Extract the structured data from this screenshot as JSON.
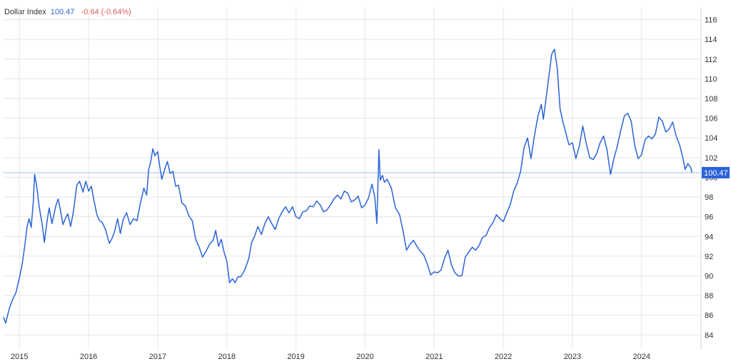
{
  "header": {
    "name": "Dollar Index",
    "last": "100.47",
    "change": "-0.64 (-0.64%)"
  },
  "colors": {
    "line": "#2b63d8",
    "last_value": "#2b63d8",
    "change_negative": "#e05a5a",
    "grid": "#e6e6e6",
    "ref_line": "#9cc3f0",
    "badge": "#2b63d8"
  },
  "chart_data": {
    "type": "line",
    "title": "Dollar Index",
    "xlabel": "",
    "ylabel": "",
    "x_ticks": [
      "2015",
      "2016",
      "2017",
      "2018",
      "2019",
      "2020",
      "2021",
      "2022",
      "2023",
      "2024"
    ],
    "y_ticks": [
      84,
      86,
      88,
      90,
      92,
      94,
      96,
      98,
      100,
      102,
      104,
      106,
      108,
      110,
      112,
      114,
      116
    ],
    "xlim": [
      2014.76,
      2024.86
    ],
    "ylim": [
      82.5,
      117.2
    ],
    "grid": true,
    "y_axis_side": "right",
    "last_value": 100.47,
    "last_label": "100.47",
    "series": [
      {
        "values": [
          [
            2014.77,
            85.8
          ],
          [
            2014.8,
            85.2
          ],
          [
            2014.85,
            86.6
          ],
          [
            2014.9,
            87.6
          ],
          [
            2014.95,
            88.3
          ],
          [
            2015.0,
            89.8
          ],
          [
            2015.04,
            91.2
          ],
          [
            2015.08,
            93.2
          ],
          [
            2015.11,
            95.0
          ],
          [
            2015.14,
            95.8
          ],
          [
            2015.17,
            94.9
          ],
          [
            2015.2,
            97.5
          ],
          [
            2015.22,
            100.3
          ],
          [
            2015.25,
            99.1
          ],
          [
            2015.28,
            97.3
          ],
          [
            2015.3,
            96.4
          ],
          [
            2015.33,
            95.2
          ],
          [
            2015.36,
            93.4
          ],
          [
            2015.4,
            95.6
          ],
          [
            2015.43,
            96.9
          ],
          [
            2015.47,
            95.3
          ],
          [
            2015.5,
            96.3
          ],
          [
            2015.53,
            97.2
          ],
          [
            2015.56,
            97.8
          ],
          [
            2015.6,
            96.4
          ],
          [
            2015.63,
            95.2
          ],
          [
            2015.67,
            95.9
          ],
          [
            2015.7,
            96.3
          ],
          [
            2015.74,
            95.0
          ],
          [
            2015.78,
            96.5
          ],
          [
            2015.83,
            99.2
          ],
          [
            2015.87,
            99.6
          ],
          [
            2015.92,
            98.5
          ],
          [
            2015.96,
            99.6
          ],
          [
            2016.0,
            98.6
          ],
          [
            2016.04,
            99.1
          ],
          [
            2016.08,
            97.6
          ],
          [
            2016.12,
            96.2
          ],
          [
            2016.16,
            95.6
          ],
          [
            2016.2,
            95.4
          ],
          [
            2016.25,
            94.6
          ],
          [
            2016.3,
            93.3
          ],
          [
            2016.34,
            93.8
          ],
          [
            2016.38,
            94.6
          ],
          [
            2016.42,
            95.8
          ],
          [
            2016.46,
            94.3
          ],
          [
            2016.5,
            95.7
          ],
          [
            2016.55,
            96.4
          ],
          [
            2016.6,
            95.2
          ],
          [
            2016.65,
            95.8
          ],
          [
            2016.7,
            95.6
          ],
          [
            2016.75,
            97.4
          ],
          [
            2016.8,
            98.9
          ],
          [
            2016.84,
            98.2
          ],
          [
            2016.87,
            100.8
          ],
          [
            2016.9,
            101.6
          ],
          [
            2016.93,
            102.9
          ],
          [
            2016.96,
            102.2
          ],
          [
            2017.0,
            102.6
          ],
          [
            2017.03,
            101.1
          ],
          [
            2017.06,
            99.8
          ],
          [
            2017.1,
            100.8
          ],
          [
            2017.14,
            101.6
          ],
          [
            2017.18,
            100.4
          ],
          [
            2017.22,
            100.6
          ],
          [
            2017.26,
            99.1
          ],
          [
            2017.3,
            99.2
          ],
          [
            2017.35,
            97.4
          ],
          [
            2017.4,
            97.1
          ],
          [
            2017.45,
            96.1
          ],
          [
            2017.5,
            95.6
          ],
          [
            2017.55,
            93.7
          ],
          [
            2017.6,
            92.9
          ],
          [
            2017.65,
            91.9
          ],
          [
            2017.7,
            92.5
          ],
          [
            2017.75,
            93.2
          ],
          [
            2017.8,
            93.6
          ],
          [
            2017.84,
            94.6
          ],
          [
            2017.88,
            93.0
          ],
          [
            2017.92,
            93.7
          ],
          [
            2017.96,
            92.4
          ],
          [
            2018.0,
            91.5
          ],
          [
            2018.04,
            89.3
          ],
          [
            2018.08,
            89.7
          ],
          [
            2018.12,
            89.3
          ],
          [
            2018.16,
            89.9
          ],
          [
            2018.2,
            89.9
          ],
          [
            2018.26,
            90.6
          ],
          [
            2018.32,
            91.8
          ],
          [
            2018.36,
            93.4
          ],
          [
            2018.4,
            94.0
          ],
          [
            2018.45,
            95.0
          ],
          [
            2018.5,
            94.2
          ],
          [
            2018.55,
            95.3
          ],
          [
            2018.6,
            96.0
          ],
          [
            2018.65,
            95.3
          ],
          [
            2018.7,
            94.7
          ],
          [
            2018.75,
            95.8
          ],
          [
            2018.8,
            96.5
          ],
          [
            2018.85,
            97.0
          ],
          [
            2018.9,
            96.4
          ],
          [
            2018.95,
            97.0
          ],
          [
            2019.0,
            96.0
          ],
          [
            2019.05,
            95.8
          ],
          [
            2019.1,
            96.5
          ],
          [
            2019.15,
            96.6
          ],
          [
            2019.2,
            97.1
          ],
          [
            2019.25,
            97.0
          ],
          [
            2019.3,
            97.6
          ],
          [
            2019.35,
            97.2
          ],
          [
            2019.4,
            96.5
          ],
          [
            2019.45,
            96.7
          ],
          [
            2019.5,
            97.2
          ],
          [
            2019.55,
            97.8
          ],
          [
            2019.6,
            98.2
          ],
          [
            2019.65,
            97.8
          ],
          [
            2019.7,
            98.6
          ],
          [
            2019.75,
            98.4
          ],
          [
            2019.8,
            97.5
          ],
          [
            2019.85,
            97.7
          ],
          [
            2019.9,
            98.1
          ],
          [
            2019.95,
            96.9
          ],
          [
            2020.0,
            97.2
          ],
          [
            2020.05,
            97.9
          ],
          [
            2020.1,
            99.3
          ],
          [
            2020.14,
            98.0
          ],
          [
            2020.17,
            95.3
          ],
          [
            2020.2,
            102.8
          ],
          [
            2020.22,
            99.7
          ],
          [
            2020.25,
            100.2
          ],
          [
            2020.28,
            99.5
          ],
          [
            2020.32,
            99.8
          ],
          [
            2020.38,
            98.9
          ],
          [
            2020.44,
            96.9
          ],
          [
            2020.5,
            96.2
          ],
          [
            2020.55,
            94.5
          ],
          [
            2020.6,
            92.6
          ],
          [
            2020.65,
            93.2
          ],
          [
            2020.7,
            93.6
          ],
          [
            2020.75,
            93.0
          ],
          [
            2020.8,
            92.5
          ],
          [
            2020.85,
            92.1
          ],
          [
            2020.9,
            91.2
          ],
          [
            2020.95,
            90.1
          ],
          [
            2021.0,
            90.4
          ],
          [
            2021.05,
            90.3
          ],
          [
            2021.1,
            90.6
          ],
          [
            2021.15,
            91.8
          ],
          [
            2021.2,
            92.6
          ],
          [
            2021.25,
            91.1
          ],
          [
            2021.3,
            90.3
          ],
          [
            2021.35,
            90.0
          ],
          [
            2021.4,
            90.0
          ],
          [
            2021.45,
            91.9
          ],
          [
            2021.5,
            92.4
          ],
          [
            2021.55,
            92.9
          ],
          [
            2021.6,
            92.6
          ],
          [
            2021.65,
            93.1
          ],
          [
            2021.7,
            93.9
          ],
          [
            2021.75,
            94.1
          ],
          [
            2021.8,
            94.9
          ],
          [
            2021.85,
            95.4
          ],
          [
            2021.9,
            96.2
          ],
          [
            2021.95,
            95.8
          ],
          [
            2022.0,
            95.5
          ],
          [
            2022.05,
            96.4
          ],
          [
            2022.1,
            97.2
          ],
          [
            2022.15,
            98.6
          ],
          [
            2022.2,
            99.4
          ],
          [
            2022.25,
            100.6
          ],
          [
            2022.3,
            103.0
          ],
          [
            2022.35,
            104.0
          ],
          [
            2022.4,
            101.9
          ],
          [
            2022.45,
            104.2
          ],
          [
            2022.5,
            106.2
          ],
          [
            2022.55,
            107.4
          ],
          [
            2022.58,
            105.9
          ],
          [
            2022.62,
            108.1
          ],
          [
            2022.66,
            110.3
          ],
          [
            2022.7,
            112.5
          ],
          [
            2022.74,
            113.0
          ],
          [
            2022.78,
            111.1
          ],
          [
            2022.82,
            107.0
          ],
          [
            2022.86,
            105.7
          ],
          [
            2022.9,
            104.6
          ],
          [
            2022.95,
            103.3
          ],
          [
            2023.0,
            103.5
          ],
          [
            2023.05,
            101.9
          ],
          [
            2023.1,
            103.2
          ],
          [
            2023.15,
            105.2
          ],
          [
            2023.2,
            103.4
          ],
          [
            2023.25,
            102.0
          ],
          [
            2023.3,
            101.8
          ],
          [
            2023.35,
            102.4
          ],
          [
            2023.4,
            103.5
          ],
          [
            2023.45,
            104.2
          ],
          [
            2023.5,
            102.8
          ],
          [
            2023.55,
            100.3
          ],
          [
            2023.6,
            101.9
          ],
          [
            2023.65,
            103.2
          ],
          [
            2023.7,
            104.8
          ],
          [
            2023.75,
            106.2
          ],
          [
            2023.8,
            106.5
          ],
          [
            2023.85,
            105.7
          ],
          [
            2023.9,
            103.3
          ],
          [
            2023.95,
            101.9
          ],
          [
            2024.0,
            102.3
          ],
          [
            2024.05,
            103.8
          ],
          [
            2024.1,
            104.2
          ],
          [
            2024.15,
            103.9
          ],
          [
            2024.2,
            104.4
          ],
          [
            2024.25,
            106.1
          ],
          [
            2024.3,
            105.7
          ],
          [
            2024.35,
            104.6
          ],
          [
            2024.4,
            104.9
          ],
          [
            2024.45,
            105.6
          ],
          [
            2024.5,
            104.2
          ],
          [
            2024.55,
            103.3
          ],
          [
            2024.6,
            101.9
          ],
          [
            2024.63,
            100.8
          ],
          [
            2024.67,
            101.4
          ],
          [
            2024.71,
            101.0
          ],
          [
            2024.73,
            100.47
          ]
        ]
      }
    ]
  }
}
